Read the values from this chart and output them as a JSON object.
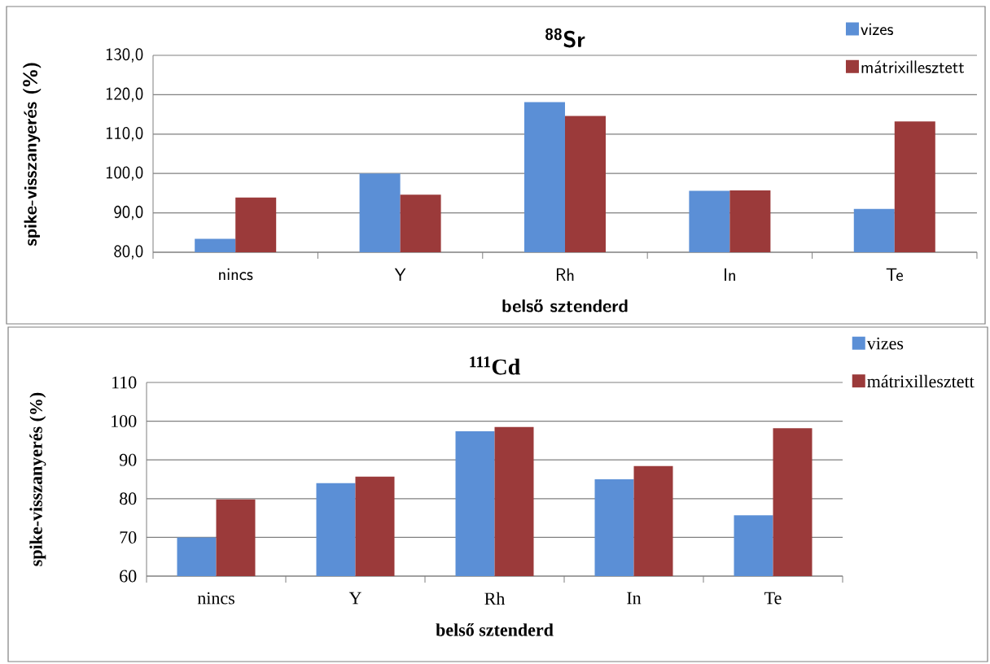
{
  "chart_data": [
    {
      "type": "bar",
      "title": "$^{88}$Sr",
      "xlabel": "belső sztenderd",
      "ylabel": "spike-visszanyerés (%)",
      "categories": [
        "nincs",
        "Y",
        "Rh",
        "In",
        "Te"
      ],
      "series": [
        {
          "name": "vizes",
          "color": "#5b8fd6",
          "values": [
            83.4,
            100.0,
            118.1,
            95.6,
            91.0
          ]
        },
        {
          "name": "mátrixillesztett",
          "color": "#9b3a3a",
          "values": [
            93.9,
            94.6,
            114.6,
            95.7,
            113.2
          ]
        }
      ],
      "ylim": [
        80,
        130
      ],
      "yticks": [
        {
          "value": 80,
          "label": "80,0"
        },
        {
          "value": 90,
          "label": "90,0"
        },
        {
          "value": 100,
          "label": "100,0"
        },
        {
          "value": 110,
          "label": "110,0"
        },
        {
          "value": 120,
          "label": "120,0"
        },
        {
          "value": 130,
          "label": "130,0"
        }
      ],
      "grid": "y",
      "legend": "top right"
    },
    {
      "type": "bar",
      "title": "$^{111}$Cd",
      "xlabel": "belső sztenderd",
      "ylabel": "spike-visszanyerés (%)",
      "categories": [
        "nincs",
        "Y",
        "Rh",
        "In",
        "Te"
      ],
      "series": [
        {
          "name": "vizes",
          "color": "#5b8fd6",
          "values": [
            70.0,
            84.0,
            97.4,
            85.0,
            75.7
          ]
        },
        {
          "name": "mátrixillesztett",
          "color": "#9b3a3a",
          "values": [
            79.8,
            85.7,
            98.5,
            88.4,
            98.2
          ]
        }
      ],
      "ylim": [
        60,
        110
      ],
      "yticks": [
        60,
        70,
        80,
        90,
        100,
        110
      ],
      "grid": "y",
      "legend": "top right"
    }
  ]
}
